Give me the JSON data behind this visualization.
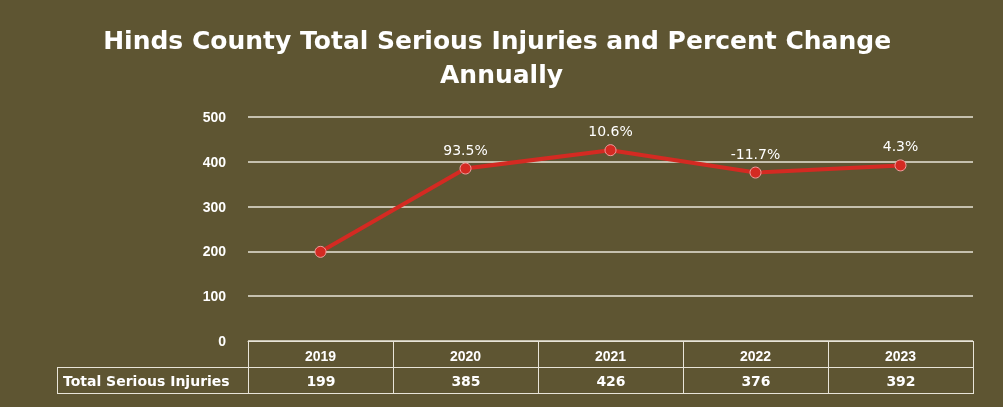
{
  "chart_data": {
    "type": "line",
    "title": "Hinds County Total Serious Injuries and Percent Change Annually",
    "categories": [
      "2019",
      "2020",
      "2021",
      "2022",
      "2023"
    ],
    "series": [
      {
        "name": "Total Serious Injuries",
        "color": "#d42a22",
        "values": [
          199,
          385,
          426,
          376,
          392
        ]
      }
    ],
    "ylim": [
      0,
      500
    ],
    "yticks": [
      0,
      100,
      200,
      300,
      400,
      500
    ],
    "grid": "y",
    "legend": false,
    "marker": "circle",
    "data_labels": true,
    "annotations": [
      {
        "text": "93.5%",
        "x": "2020",
        "y": 385
      },
      {
        "text": "10.6%",
        "x": "2021",
        "y": 426
      },
      {
        "text": "-11.7%",
        "x": "2022",
        "y": 376
      },
      {
        "text": "4.3%",
        "x": "2023",
        "y": 392
      }
    ]
  }
}
